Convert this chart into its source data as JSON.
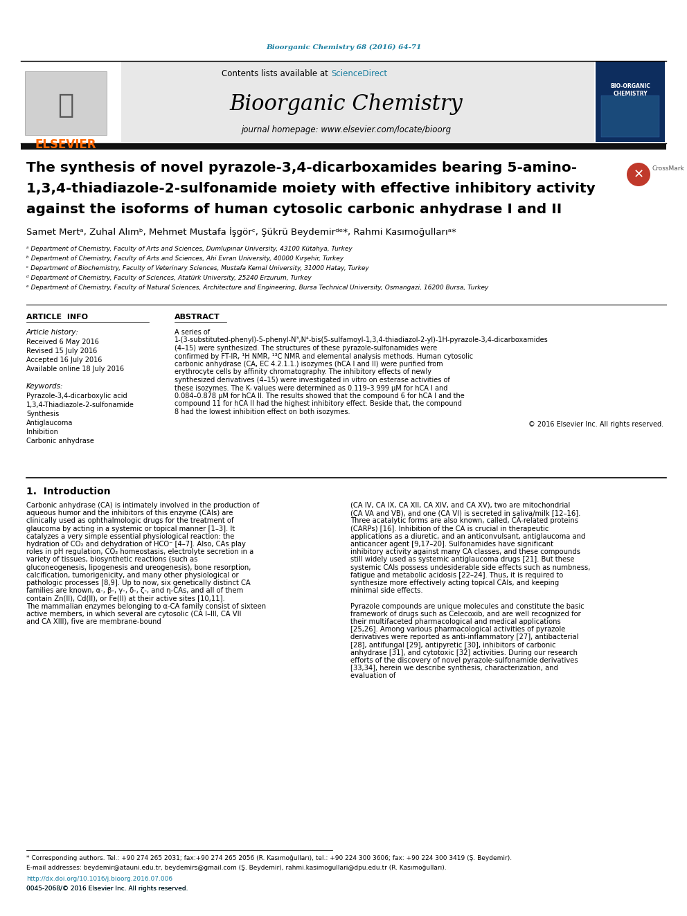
{
  "journal_ref": "Bioorganic Chemistry 68 (2016) 64-71",
  "journal_ref_color": "#1a7fa0",
  "header_bg": "#e8e8e8",
  "sciencedirect_color": "#1a7fa0",
  "journal_name": "Bioorganic Chemistry",
  "journal_homepage": "journal homepage: www.elsevier.com/locate/bioorg",
  "elsevier_color": "#ff6600",
  "black_bar_color": "#111111",
  "affiliations": [
    "ᵃ Department of Chemistry, Faculty of Arts and Sciences, Dumlupınar University, 43100 Kütahya, Turkey",
    "ᵇ Department of Chemistry, Faculty of Arts and Sciences, Ahi Evran University, 40000 Kırşehir, Turkey",
    "ᶜ Department of Biochemistry, Faculty of Veterinary Sciences, Mustafa Kemal University, 31000 Hatay, Turkey",
    "ᵈ Department of Chemistry, Faculty of Sciences, Atatürk University, 25240 Erzurum, Turkey",
    "ᵉ Department of Chemistry, Faculty of Natural Sciences, Architecture and Engineering, Bursa Technical University, Osmangazi, 16200 Bursa, Turkey"
  ],
  "article_info_title": "ARTICLE  INFO",
  "abstract_title": "ABSTRACT",
  "article_history_label": "Article history:",
  "received": "Received 6 May 2016",
  "revised": "Revised 15 July 2016",
  "accepted": "Accepted 16 July 2016",
  "available": "Available online 18 July 2016",
  "keywords_label": "Keywords:",
  "keywords": [
    "Pyrazole-3,4-dicarboxylic acid",
    "1,3,4-Thiadiazole-2-sulfonamide",
    "Synthesis",
    "Antiglaucoma",
    "Inhibition",
    "Carbonic anhydrase"
  ],
  "abstract_text": "A series of 1-(3-substituted-phenyl)-5-phenyl-N³,N⁴-bis(5-sulfamoyl-1,3,4-thiadiazol-2-yl)-1H-pyrazole-3,4-dicarboxamides (4–15) were synthesized. The structures of these pyrazole-sulfonamides were confirmed by FT-IR, ¹H NMR, ¹³C NMR and elemental analysis methods. Human cytosolic carbonic anhydrase (CA, EC 4.2.1.1.) isozymes (hCA I and II) were purified from erythrocyte cells by affinity chromatography. The inhibitory effects of newly synthesized derivatives (4–15) were investigated in vitro on esterase activities of these isozymes. The Kᵢ values were determined as 0.119–3.999 μM for hCA I and 0.084–0.878 μM for hCA II. The results showed that the compound 6 for hCA I and the compound 11 for hCA II had the highest inhibitory effect. Beside that, the compound 8 had the lowest inhibition effect on both isozymes.",
  "copyright": "© 2016 Elsevier Inc. All rights reserved.",
  "intro_title": "1.  Introduction",
  "intro_col1": "Carbonic anhydrase (CA) is intimately involved in the production of aqueous humor and the inhibitors of this enzyme (CAIs) are clinically used as ophthalmologic drugs for the treatment of glaucoma by acting in a systemic or topical manner [1–3]. It catalyzes a very simple essential physiological reaction: the hydration of CO₂ and dehydration of HCO⁻ [4–7]. Also, CAs play roles in pH regulation, CO₂ homeostasis, electrolyte secretion in a variety of tissues, biosynthetic reactions (such as gluconeogenesis, lipogenesis and ureogenesis), bone resorption, calcification, tumorigenicity, and many other physiological or pathologic processes [8,9]. Up to now, six genetically distinct CA families are known, α-, β-, γ-, δ-, ζ-, and η-CAs, and all of them contain Zn(II), Cd(II), or Fe(II) at their active sites [10,11]. The mammalian enzymes belonging to α-CA family consist of sixteen active members, in which several are cytosolic (CA I–III, CA VII and CA XIII), five are membrane-bound",
  "intro_col2": "(CA IV, CA IX, CA XII, CA XIV, and CA XV), two are mitochondrial (CA VA and VB), and one (CA VI) is secreted in saliva/milk [12–16]. Three acatalytic forms are also known, called, CA-related proteins (CARPs) [16]. Inhibition of the CA is crucial in therapeutic applications as a diuretic, and an anticonvulsant, antiglaucoma and anticancer agent [9,17–20]. Sulfonamides have significant inhibitory activity against many CA classes, and these compounds still widely used as systemic antiglaucoma drugs [21]. But these systemic CAIs possess undesiderable side effects such as numbness, fatigue and metabolic acidosis [22–24]. Thus, it is required to synthesize more effectively acting topical CAIs, and keeping minimal side effects.\n\nPyrazole compounds are unique molecules and constitute the basic framework of drugs such as Celecoxib, and are well recognized for their multifaceted pharmacological and medical applications [25,26]. Among various pharmacological activities of pyrazole derivatives were reported as anti-inflammatory [27], antibacterial [28], antifungal [29], antipyretic [30], inhibitors of carbonic anhydrase [31], and cytotoxic [32] activities. During our research efforts of the discovery of novel pyrazole-sulfonamide derivatives [33,34], herein we describe synthesis, characterization, and evaluation of",
  "footnote_text": "* Corresponding authors. Tel.: +90 274 265 2031; fax:+90 274 265 2056 (R. Kasımoğulları), tel.: +90 224 300 3606; fax: +90 224 300 3419 (Ş. Beydemir).\nE-mail addresses: beydemir@atauni.edu.tr, beydemirs@gmail.com (Ş. Beydemir), rahmi.kasimogullari@dpu.edu.tr (R. Kasımoğulları).",
  "doi_text": "http://dx.doi.org/10.1016/j.bioorg.2016.07.006\n0045-2068/© 2016 Elsevier Inc. All rights reserved.",
  "bg_color": "#ffffff",
  "text_color": "#000000"
}
